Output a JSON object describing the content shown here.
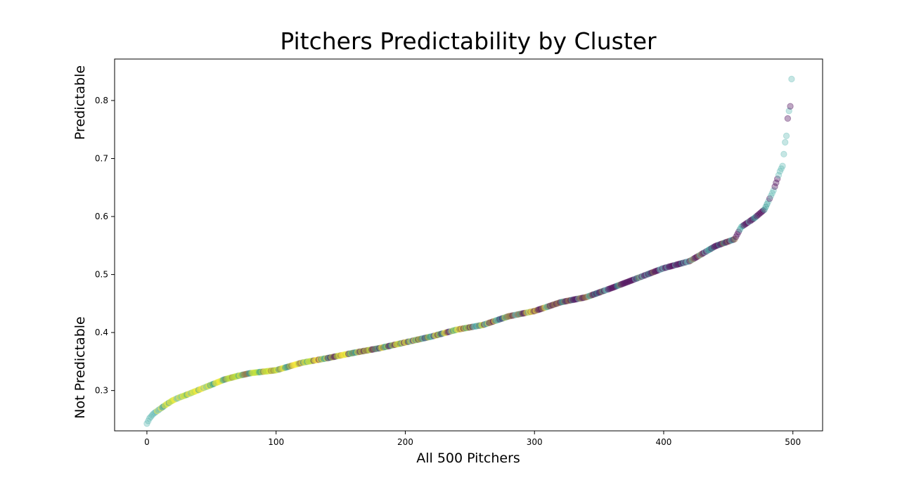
{
  "chart_data": {
    "type": "scatter",
    "title": "Pitchers Predictability by Cluster",
    "xlabel": "All 500 Pitchers",
    "ylabel_top": "Predictable",
    "ylabel_bottom": "Not Predictable",
    "xlim": [
      -25,
      523
    ],
    "ylim": [
      0.2305,
      0.8715
    ],
    "xticks": [
      0,
      100,
      200,
      300,
      400,
      500
    ],
    "yticks": [
      0.3,
      0.4,
      0.5,
      0.6,
      0.7,
      0.8
    ],
    "ytick_labels": [
      "0.3",
      "0.4",
      "0.5",
      "0.6",
      "0.7",
      "0.8"
    ],
    "grid": false,
    "legend": "none",
    "n_points": 500,
    "point_opacity": 0.35,
    "curve_anchors": [
      [
        0,
        0.243
      ],
      [
        2,
        0.252
      ],
      [
        5,
        0.26
      ],
      [
        10,
        0.268
      ],
      [
        15,
        0.276
      ],
      [
        20,
        0.283
      ],
      [
        25,
        0.288
      ],
      [
        30,
        0.292
      ],
      [
        40,
        0.301
      ],
      [
        50,
        0.31
      ],
      [
        60,
        0.319
      ],
      [
        70,
        0.325
      ],
      [
        80,
        0.33
      ],
      [
        100,
        0.335
      ],
      [
        120,
        0.348
      ],
      [
        140,
        0.356
      ],
      [
        160,
        0.365
      ],
      [
        180,
        0.373
      ],
      [
        200,
        0.383
      ],
      [
        220,
        0.393
      ],
      [
        240,
        0.405
      ],
      [
        260,
        0.413
      ],
      [
        280,
        0.428
      ],
      [
        300,
        0.437
      ],
      [
        320,
        0.452
      ],
      [
        340,
        0.461
      ],
      [
        360,
        0.477
      ],
      [
        380,
        0.494
      ],
      [
        400,
        0.511
      ],
      [
        420,
        0.523
      ],
      [
        440,
        0.549
      ],
      [
        455,
        0.561
      ],
      [
        460,
        0.582
      ],
      [
        470,
        0.597
      ],
      [
        478,
        0.612
      ],
      [
        485,
        0.645
      ],
      [
        490,
        0.678
      ],
      [
        492,
        0.687
      ],
      [
        494,
        0.728
      ],
      [
        495,
        0.739
      ],
      [
        496,
        0.769
      ],
      [
        497,
        0.782
      ],
      [
        498,
        0.79
      ],
      [
        499,
        0.837
      ]
    ],
    "cluster_segments": [
      {
        "range": [
          0,
          10
        ],
        "clusters": [
          "teal",
          "teal",
          "yellow"
        ]
      },
      {
        "range": [
          11,
          60
        ],
        "clusters": [
          "yellow",
          "yellow",
          "lime",
          "green",
          "teal"
        ]
      },
      {
        "range": [
          61,
          120
        ],
        "clusters": [
          "yellow",
          "lime",
          "lime",
          "green",
          "brown"
        ]
      },
      {
        "range": [
          121,
          165
        ],
        "clusters": [
          "yellow",
          "lime",
          "green",
          "purple",
          "brown"
        ]
      },
      {
        "range": [
          166,
          200
        ],
        "clusters": [
          "yellow",
          "yellow",
          "lime",
          "green",
          "purple",
          "brown"
        ]
      },
      {
        "range": [
          201,
          260
        ],
        "clusters": [
          "yellow",
          "lime",
          "green",
          "purple",
          "purple",
          "brown",
          "teal"
        ]
      },
      {
        "range": [
          261,
          330
        ],
        "clusters": [
          "purple",
          "purple",
          "brown",
          "brown",
          "green",
          "teal",
          "yellow"
        ]
      },
      {
        "range": [
          331,
          455
        ],
        "clusters": [
          "purple",
          "purple",
          "purple",
          "green",
          "teal",
          "brown"
        ]
      },
      {
        "range": [
          456,
          480
        ],
        "clusters": [
          "purple",
          "purple",
          "green",
          "teal"
        ]
      },
      {
        "range": [
          481,
          499
        ],
        "clusters": [
          "purple",
          "purple",
          "teal",
          "teal"
        ]
      }
    ],
    "fixed_points": [
      {
        "index": 0,
        "cluster": "teal"
      },
      {
        "index": 491,
        "cluster": "teal"
      },
      {
        "index": 492,
        "cluster": "teal"
      },
      {
        "index": 493,
        "cluster": "teal"
      },
      {
        "index": 494,
        "cluster": "teal"
      },
      {
        "index": 495,
        "cluster": "teal"
      },
      {
        "index": 496,
        "cluster": "purple"
      },
      {
        "index": 497,
        "cluster": "teal"
      },
      {
        "index": 498,
        "cluster": "purple"
      },
      {
        "index": 499,
        "cluster": "teal"
      }
    ],
    "cluster_colors": {
      "purple": "#440154",
      "brown": "#8b6a3a",
      "green": "#21918c",
      "teal": "#5cb8b2",
      "lime": "#b5de2b",
      "yellow": "#fde725"
    }
  }
}
